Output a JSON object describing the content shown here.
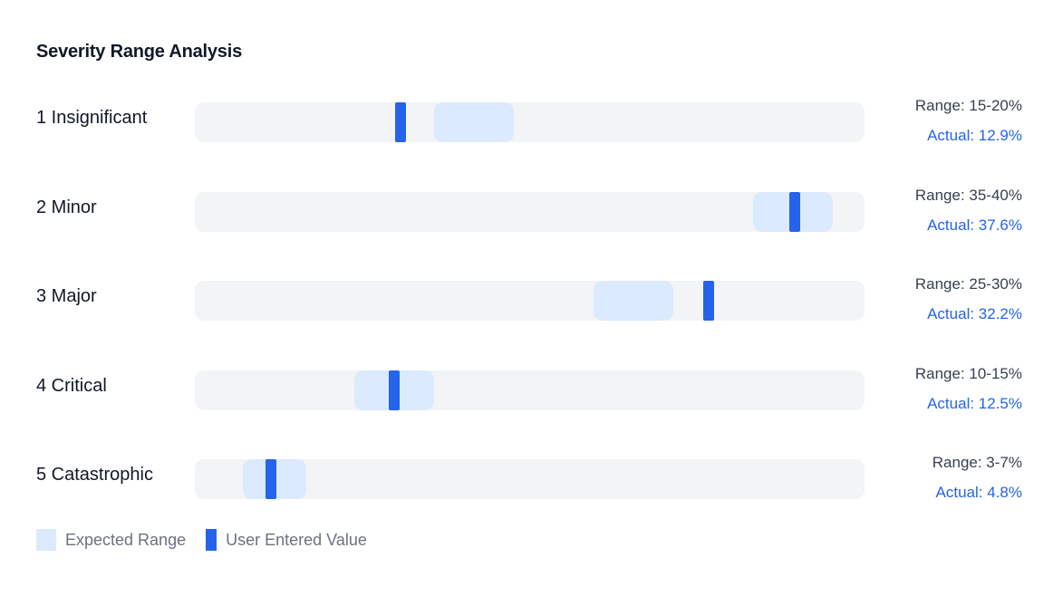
{
  "chart_data": {
    "type": "range-bullet",
    "title": "Severity Range Analysis",
    "x_domain": [
      0,
      42
    ],
    "categories": [
      "1 Insignificant",
      "2 Minor",
      "3 Major",
      "4 Critical",
      "5 Catastrophic"
    ],
    "rows": [
      {
        "label": "1 Insignificant",
        "range_min": 15,
        "range_max": 20,
        "actual": 12.9,
        "range_text": "Range: 15-20%",
        "actual_text": "Actual: 12.9%"
      },
      {
        "label": "2 Minor",
        "range_min": 35,
        "range_max": 40,
        "actual": 37.6,
        "range_text": "Range: 35-40%",
        "actual_text": "Actual: 37.6%"
      },
      {
        "label": "3 Major",
        "range_min": 25,
        "range_max": 30,
        "actual": 32.2,
        "range_text": "Range: 25-30%",
        "actual_text": "Actual: 32.2%"
      },
      {
        "label": "4 Critical",
        "range_min": 10,
        "range_max": 15,
        "actual": 12.5,
        "range_text": "Range: 10-15%",
        "actual_text": "Actual: 12.5%"
      },
      {
        "label": "5 Catastrophic",
        "range_min": 3,
        "range_max": 7,
        "actual": 4.8,
        "range_text": "Range: 3-7%",
        "actual_text": "Actual: 4.8%"
      }
    ],
    "legend": {
      "placement": "bottom-left",
      "items": [
        {
          "key": "range",
          "label": "Expected Range"
        },
        {
          "key": "value",
          "label": "User Entered Value"
        }
      ]
    },
    "colors": {
      "track": "#f3f4f6",
      "range": "#dbeafe",
      "value": "#2563eb",
      "actual_text": "#2563eb",
      "range_text": "#374151"
    }
  }
}
